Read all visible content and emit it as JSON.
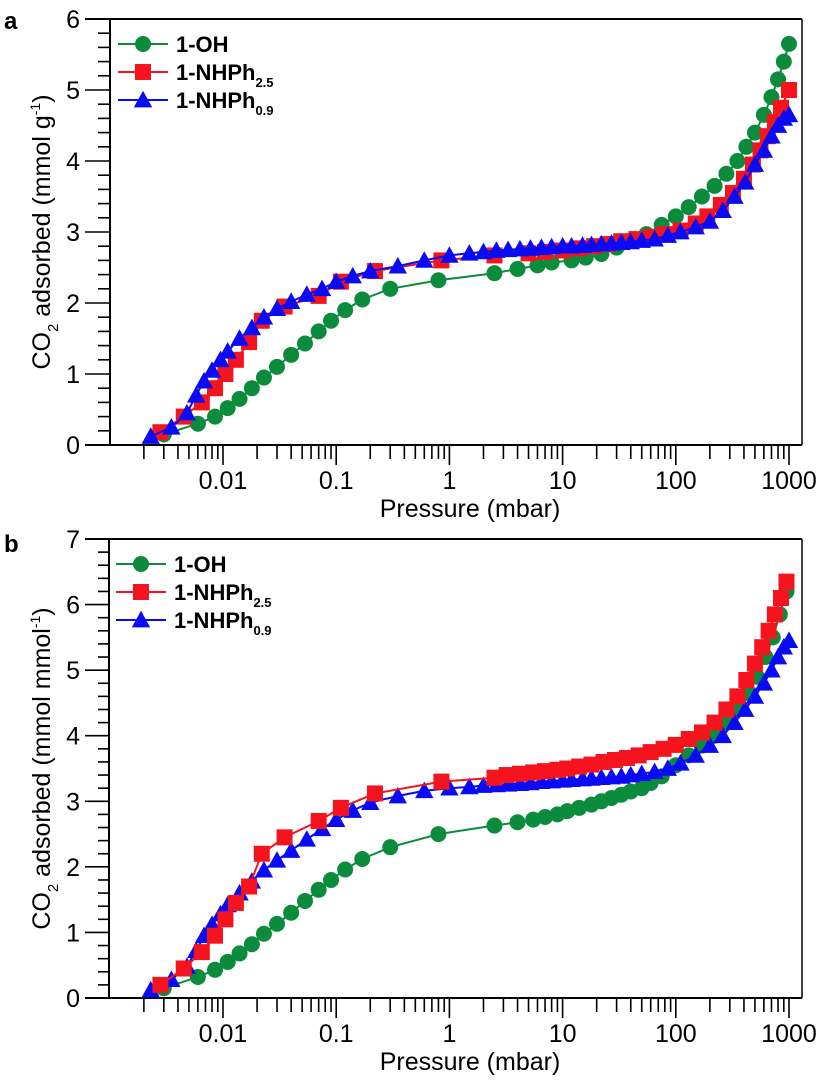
{
  "colors": {
    "1-OH": "#0a8c3c",
    "1-NHPh2.5": "#f5141e",
    "1-NHPh0.9": "#0a0af5"
  },
  "chart_data": [
    {
      "panel": "a",
      "type": "scatter",
      "title": "",
      "xlabel": "Pressure (mbar)",
      "ylabel_parts": {
        "main": "CO",
        "sub": "2",
        "rest": " adsorbed (mmol g",
        "sup": "-1",
        "end": ")"
      },
      "xscale": "log",
      "xlim": [
        0.0017,
        1300
      ],
      "ylim": [
        0,
        6
      ],
      "xticks": [
        0.01,
        0.1,
        1,
        10,
        100,
        1000
      ],
      "xtick_labels": [
        "0.01",
        "0.1",
        "1",
        "10",
        "100",
        "1000"
      ],
      "yticks": [
        0,
        1,
        2,
        3,
        4,
        5,
        6
      ],
      "ytick_labels": [
        "0",
        "1",
        "2",
        "3",
        "4",
        "5",
        "6"
      ],
      "legend": {
        "placement": "top-left"
      },
      "series": [
        {
          "name": "1-OH",
          "label_main": "1-OH",
          "label_sub": "",
          "marker": "circle",
          "color_key": "1-OH",
          "x": [
            0.003,
            0.006,
            0.0085,
            0.011,
            0.014,
            0.018,
            0.023,
            0.03,
            0.04,
            0.053,
            0.07,
            0.09,
            0.12,
            0.17,
            0.3,
            0.8,
            2.5,
            4,
            6,
            8,
            12,
            16,
            22,
            30,
            40,
            55,
            75,
            100,
            130,
            170,
            220,
            280,
            350,
            420,
            500,
            600,
            700,
            800,
            900,
            1000
          ],
          "y": [
            0.15,
            0.3,
            0.4,
            0.52,
            0.65,
            0.8,
            0.95,
            1.1,
            1.27,
            1.43,
            1.6,
            1.75,
            1.9,
            2.05,
            2.2,
            2.32,
            2.42,
            2.48,
            2.53,
            2.57,
            2.6,
            2.64,
            2.69,
            2.78,
            2.88,
            2.97,
            3.1,
            3.22,
            3.35,
            3.5,
            3.65,
            3.82,
            4.0,
            4.2,
            4.4,
            4.65,
            4.9,
            5.15,
            5.4,
            5.65
          ]
        },
        {
          "name": "1-NHPh2.5",
          "label_main": "1-NHPh",
          "label_sub": "2.5",
          "marker": "square",
          "color_key": "1-NHPh2.5",
          "x": [
            0.0028,
            0.0045,
            0.0065,
            0.0085,
            0.0105,
            0.013,
            0.017,
            0.022,
            0.035,
            0.07,
            0.11,
            0.22,
            0.85,
            2.5,
            5,
            7,
            10,
            14,
            19,
            25,
            33,
            45,
            60,
            80,
            110,
            150,
            190,
            250,
            320,
            400,
            480,
            560,
            650,
            750,
            850,
            1000
          ],
          "y": [
            0.18,
            0.4,
            0.6,
            0.8,
            1.0,
            1.2,
            1.45,
            1.75,
            1.95,
            2.1,
            2.3,
            2.45,
            2.6,
            2.67,
            2.7,
            2.72,
            2.74,
            2.77,
            2.8,
            2.83,
            2.87,
            2.9,
            2.93,
            2.97,
            3.02,
            3.12,
            3.22,
            3.38,
            3.55,
            3.75,
            3.95,
            4.15,
            4.35,
            4.55,
            4.75,
            5.0
          ]
        },
        {
          "name": "1-NHPh0.9",
          "label_main": "1-NHPh",
          "label_sub": "0.9",
          "marker": "triangle",
          "color_key": "1-NHPh0.9",
          "x": [
            0.0023,
            0.0035,
            0.0048,
            0.0058,
            0.0068,
            0.008,
            0.0095,
            0.011,
            0.014,
            0.018,
            0.023,
            0.03,
            0.04,
            0.055,
            0.075,
            0.1,
            0.14,
            0.2,
            0.35,
            0.6,
            1.0,
            1.5,
            2.0,
            2.6,
            3.3,
            4.2,
            5.2,
            6.5,
            8,
            10,
            12,
            15,
            18,
            22,
            27,
            33,
            40,
            50,
            65,
            85,
            110,
            150,
            200,
            260,
            330,
            410,
            500,
            600,
            700,
            800,
            900,
            1000
          ],
          "y": [
            0.12,
            0.25,
            0.45,
            0.7,
            0.9,
            1.05,
            1.2,
            1.32,
            1.5,
            1.65,
            1.8,
            1.92,
            2.02,
            2.12,
            2.2,
            2.3,
            2.38,
            2.45,
            2.52,
            2.6,
            2.67,
            2.7,
            2.72,
            2.74,
            2.75,
            2.76,
            2.77,
            2.78,
            2.79,
            2.8,
            2.8,
            2.81,
            2.82,
            2.83,
            2.84,
            2.85,
            2.86,
            2.88,
            2.9,
            2.95,
            3.0,
            3.07,
            3.15,
            3.3,
            3.5,
            3.7,
            3.95,
            4.15,
            4.35,
            4.5,
            4.6,
            4.65
          ]
        }
      ]
    },
    {
      "panel": "b",
      "type": "scatter",
      "title": "",
      "xlabel": "Pressure (mbar)",
      "ylabel_parts": {
        "main": "CO",
        "sub": "2",
        "rest": " adsorbed (mmol mmol",
        "sup": "-1",
        "end": ")"
      },
      "xscale": "log",
      "xlim": [
        0.0017,
        1300
      ],
      "ylim": [
        0,
        7
      ],
      "xticks": [
        0.01,
        0.1,
        1,
        10,
        100,
        1000
      ],
      "xtick_labels": [
        "0.01",
        "0.1",
        "1",
        "10",
        "100",
        "1000"
      ],
      "yticks": [
        0,
        1,
        2,
        3,
        4,
        5,
        6,
        7
      ],
      "ytick_labels": [
        "0",
        "1",
        "2",
        "3",
        "4",
        "5",
        "6",
        "7"
      ],
      "legend": {
        "placement": "top-left"
      },
      "series": [
        {
          "name": "1-OH",
          "label_main": "1-OH",
          "label_sub": "",
          "marker": "circle",
          "color_key": "1-OH",
          "x": [
            0.003,
            0.006,
            0.0085,
            0.011,
            0.014,
            0.018,
            0.023,
            0.03,
            0.04,
            0.053,
            0.07,
            0.09,
            0.12,
            0.17,
            0.3,
            0.8,
            2.5,
            4,
            5.5,
            7,
            9,
            11,
            14,
            18,
            22,
            27,
            33,
            40,
            50,
            60,
            75,
            100,
            130,
            170,
            220,
            280,
            350,
            430,
            520,
            620,
            720,
            830,
            950
          ],
          "y": [
            0.15,
            0.32,
            0.43,
            0.55,
            0.68,
            0.82,
            0.98,
            1.13,
            1.3,
            1.48,
            1.65,
            1.8,
            1.96,
            2.12,
            2.3,
            2.5,
            2.63,
            2.68,
            2.72,
            2.76,
            2.8,
            2.85,
            2.9,
            2.95,
            3.0,
            3.05,
            3.1,
            3.15,
            3.2,
            3.28,
            3.38,
            3.55,
            3.7,
            3.85,
            4.0,
            4.2,
            4.4,
            4.65,
            4.9,
            5.2,
            5.5,
            5.85,
            6.2
          ]
        },
        {
          "name": "1-NHPh2.5",
          "label_main": "1-NHPh",
          "label_sub": "2.5",
          "marker": "square",
          "color_key": "1-NHPh2.5",
          "x": [
            0.0028,
            0.0045,
            0.0065,
            0.0085,
            0.0105,
            0.013,
            0.017,
            0.022,
            0.035,
            0.07,
            0.11,
            0.22,
            0.85,
            2.5,
            3.2,
            4.2,
            5.5,
            7,
            9,
            11,
            14,
            18,
            23,
            29,
            37,
            47,
            60,
            78,
            100,
            130,
            170,
            220,
            280,
            350,
            420,
            500,
            580,
            660,
            750,
            850,
            950
          ],
          "y": [
            0.2,
            0.45,
            0.7,
            0.95,
            1.2,
            1.45,
            1.7,
            2.2,
            2.45,
            2.7,
            2.9,
            3.12,
            3.3,
            3.36,
            3.4,
            3.42,
            3.44,
            3.46,
            3.48,
            3.5,
            3.53,
            3.56,
            3.6,
            3.63,
            3.66,
            3.7,
            3.75,
            3.8,
            3.86,
            3.95,
            4.05,
            4.2,
            4.4,
            4.6,
            4.85,
            5.1,
            5.35,
            5.6,
            5.85,
            6.1,
            6.35
          ]
        },
        {
          "name": "1-NHPh0.9",
          "label_main": "1-NHPh",
          "label_sub": "0.9",
          "marker": "triangle",
          "color_key": "1-NHPh0.9",
          "x": [
            0.0023,
            0.0035,
            0.0048,
            0.0058,
            0.0068,
            0.008,
            0.0095,
            0.011,
            0.014,
            0.018,
            0.023,
            0.03,
            0.04,
            0.055,
            0.075,
            0.1,
            0.14,
            0.2,
            0.35,
            0.6,
            1.0,
            1.5,
            2.0,
            2.6,
            3.3,
            4.2,
            5.2,
            6.5,
            8,
            10,
            12,
            15,
            18,
            22,
            27,
            33,
            40,
            50,
            65,
            85,
            110,
            150,
            200,
            260,
            330,
            410,
            500,
            600,
            700,
            800,
            900,
            1000
          ],
          "y": [
            0.12,
            0.28,
            0.48,
            0.72,
            0.95,
            1.12,
            1.28,
            1.42,
            1.6,
            1.78,
            1.95,
            2.1,
            2.25,
            2.42,
            2.58,
            2.72,
            2.86,
            2.98,
            3.08,
            3.16,
            3.2,
            3.22,
            3.24,
            3.25,
            3.26,
            3.27,
            3.28,
            3.3,
            3.31,
            3.32,
            3.33,
            3.34,
            3.35,
            3.36,
            3.37,
            3.38,
            3.4,
            3.42,
            3.45,
            3.5,
            3.58,
            3.7,
            3.85,
            4.0,
            4.2,
            4.4,
            4.6,
            4.8,
            5.0,
            5.2,
            5.35,
            5.45
          ]
        }
      ]
    }
  ]
}
